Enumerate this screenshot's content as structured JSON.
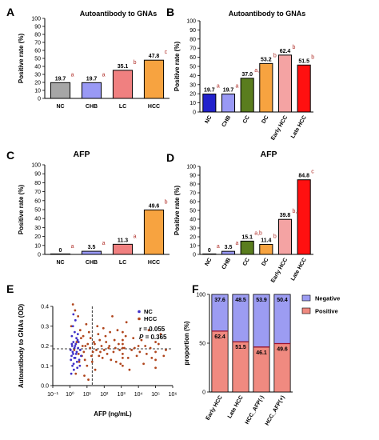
{
  "colors": {
    "NC": "#a6a6a6",
    "CHB": "#9999f5",
    "LC": "#f08080",
    "HCC": "#f7a340",
    "NC_B": "#2222cc",
    "CHB_B": "#9999f5",
    "CC": "#5a7d1e",
    "DC": "#f7a340",
    "EarlyHCC": "#f4a3a3",
    "LateHCC": "#ff1010",
    "negative": "#9c9cf2",
    "positive": "#f08a80",
    "scatter_nc": "#4030c8",
    "scatter_hcc": "#b0451c",
    "sig": "#b0302a"
  },
  "panels": [
    {
      "letter": "A",
      "title": "Autoantibody to GNAs",
      "ylabel": "Positive rate  (%)",
      "ylim": [
        0,
        100
      ],
      "yticks": [
        "0",
        "10",
        "20",
        "30",
        "40",
        "50",
        "60",
        "70",
        "80",
        "90",
        "100"
      ]
    },
    {
      "letter": "B",
      "title": "Autoantibody to GNAs",
      "ylabel": "Positive rate  (%)",
      "ylim": [
        0,
        100
      ],
      "yticks": [
        "0",
        "10",
        "20",
        "30",
        "40",
        "50",
        "60",
        "70",
        "80",
        "90",
        "100"
      ]
    },
    {
      "letter": "C",
      "title": "AFP",
      "ylabel": "Positive rate  (%)",
      "ylim": [
        0,
        100
      ],
      "yticks": [
        "0",
        "10",
        "20",
        "30",
        "40",
        "50",
        "60",
        "70",
        "80",
        "90",
        "100"
      ]
    },
    {
      "letter": "D",
      "title": "AFP",
      "ylabel": "Positive rate  (%)",
      "ylim": [
        0,
        100
      ],
      "yticks": [
        "0",
        "10",
        "20",
        "30",
        "40",
        "50",
        "60",
        "70",
        "80",
        "90",
        "100"
      ]
    },
    {
      "letter": "E",
      "title": "",
      "ylabel": "Autoantibody to GNAs (OD)",
      "xlabel": "AFP (ng/mL)",
      "yticks": [
        "0.0",
        "0.1",
        "0.2",
        "0.3",
        "0.4"
      ],
      "xticks": [
        "10⁻¹",
        "10⁰",
        "10¹",
        "10²",
        "10³",
        "10⁴",
        "10⁵",
        "10⁶"
      ],
      "legend": [
        "NC",
        "HCC"
      ],
      "r": "r = 0.055",
      "p_label": "P",
      "p_value": " = 0.365"
    },
    {
      "letter": "F",
      "title": "",
      "ylabel": "proportion (%)",
      "yticks": [
        "0",
        "50",
        "100"
      ],
      "legend": [
        "Negative",
        "Positive"
      ]
    }
  ],
  "chart_data": [
    {
      "type": "bar",
      "title": "Autoantibody to GNAs",
      "ylabel": "Positive rate  (%)",
      "ylim": [
        0,
        100
      ],
      "categories": [
        "NC",
        "CHB",
        "LC",
        "HCC"
      ],
      "values": [
        19.7,
        19.7,
        35.1,
        47.8
      ],
      "value_labels": [
        "19.7",
        "19.7",
        "35.1",
        "47.8"
      ],
      "significance": [
        "a",
        "a",
        "b",
        "c"
      ]
    },
    {
      "type": "bar",
      "title": "Autoantibody to GNAs",
      "ylabel": "Positive rate  (%)",
      "ylim": [
        0,
        100
      ],
      "categories": [
        "NC",
        "CHB",
        "CC",
        "DC",
        "Early HCC",
        "Late HCC"
      ],
      "values": [
        19.7,
        19.7,
        37.0,
        53.2,
        62.4,
        51.5
      ],
      "value_labels": [
        "19.7",
        "19.7",
        "37.0",
        "53.2",
        "62.4",
        "51.5"
      ],
      "significance": [
        "a",
        "a",
        "a,b",
        "b",
        "b",
        "b"
      ]
    },
    {
      "type": "bar",
      "title": "AFP",
      "ylabel": "Positive rate  (%)",
      "ylim": [
        0,
        100
      ],
      "categories": [
        "NC",
        "CHB",
        "LC",
        "HCC"
      ],
      "values": [
        0,
        3.5,
        11.3,
        49.6
      ],
      "value_labels": [
        "0",
        "3.5",
        "11.3",
        "49.6"
      ],
      "significance": [
        "a",
        "a",
        "a",
        "b"
      ]
    },
    {
      "type": "bar",
      "title": "AFP",
      "ylabel": "Positive rate  (%)",
      "ylim": [
        0,
        100
      ],
      "categories": [
        "NC",
        "CHB",
        "CC",
        "DC",
        "Early HCC",
        "Late HCC"
      ],
      "values": [
        0,
        3.5,
        15.1,
        11.4,
        39.8,
        84.8
      ],
      "value_labels": [
        "0",
        "3.5",
        "15.1",
        "11.4",
        "39.8",
        "84.8"
      ],
      "significance": [
        "a",
        "a",
        "a,b",
        "b",
        "b,c",
        "c"
      ]
    },
    {
      "type": "scatter",
      "xlabel": "AFP (ng/mL)",
      "ylabel": "Autoantibody to GNAs (OD)",
      "xscale": "log",
      "xlim": [
        0.1,
        1000000
      ],
      "ylim": [
        0,
        0.4
      ],
      "reference_lines": {
        "x": 20,
        "y": 0.186
      },
      "correlation": {
        "r": 0.055,
        "P": 0.365
      },
      "series": [
        {
          "name": "NC",
          "points": [
            [
              1.2,
              0.06
            ],
            [
              1.4,
              0.1
            ],
            [
              1.6,
              0.22
            ],
            [
              1.1,
              0.18
            ],
            [
              1.8,
              0.14
            ],
            [
              2.0,
              0.2
            ],
            [
              2.3,
              0.16
            ],
            [
              1.3,
              0.25
            ],
            [
              1.5,
              0.3
            ],
            [
              2.6,
              0.12
            ],
            [
              1.7,
              0.08
            ],
            [
              3.0,
              0.19
            ],
            [
              1.9,
              0.27
            ],
            [
              2.2,
              0.21
            ],
            [
              1.25,
              0.15
            ],
            [
              2.8,
              0.23
            ],
            [
              1.45,
              0.17
            ],
            [
              3.5,
              0.13
            ],
            [
              2.1,
              0.33
            ],
            [
              1.65,
              0.11
            ],
            [
              2.4,
              0.24
            ],
            [
              1.35,
              0.2
            ],
            [
              4.0,
              0.18
            ],
            [
              1.55,
              0.16
            ],
            [
              2.7,
              0.09
            ],
            [
              3.2,
              0.22
            ],
            [
              1.15,
              0.13
            ],
            [
              1.85,
              0.19
            ],
            [
              2.9,
              0.26
            ],
            [
              1.6,
              0.36
            ],
            [
              4.5,
              0.15
            ],
            [
              2.05,
              0.14
            ],
            [
              1.3,
              0.21
            ],
            [
              3.8,
              0.1
            ],
            [
              2.5,
              0.17
            ]
          ]
        },
        {
          "name": "HCC",
          "points": [
            [
              1.5,
              0.41
            ],
            [
              2.0,
              0.38
            ],
            [
              3.0,
              0.35
            ],
            [
              1.2,
              0.3
            ],
            [
              4.0,
              0.28
            ],
            [
              6.0,
              0.25
            ],
            [
              2.5,
              0.22
            ],
            [
              8.0,
              0.2
            ],
            [
              1.8,
              0.18
            ],
            [
              5.0,
              0.15
            ],
            [
              3.5,
              0.12
            ],
            [
              10,
              0.1
            ],
            [
              2.2,
              0.06
            ],
            [
              7.0,
              0.05
            ],
            [
              12,
              0.03
            ],
            [
              15,
              0.19
            ],
            [
              25,
              0.22
            ],
            [
              40,
              0.3
            ],
            [
              60,
              0.17
            ],
            [
              80,
              0.14
            ],
            [
              120,
              0.25
            ],
            [
              200,
              0.2
            ],
            [
              300,
              0.35
            ],
            [
              500,
              0.12
            ],
            [
              800,
              0.18
            ],
            [
              1200,
              0.27
            ],
            [
              1200,
              0.21
            ],
            [
              1200,
              0.16
            ],
            [
              1200,
              0.19
            ],
            [
              1200,
              0.23
            ],
            [
              1200,
              0.14
            ],
            [
              1200,
              0.1
            ],
            [
              2000,
              0.32
            ],
            [
              3000,
              0.08
            ],
            [
              5000,
              0.24
            ],
            [
              8000,
              0.15
            ],
            [
              10000,
              0.2
            ],
            [
              20000,
              0.11
            ],
            [
              40000,
              0.28
            ],
            [
              100000,
              0.17
            ],
            [
              100000,
              0.22
            ],
            [
              100000,
              0.13
            ],
            [
              100000,
              0.09
            ],
            [
              200000,
              0.26
            ],
            [
              400000,
              0.18
            ],
            [
              20,
              0.12
            ],
            [
              30,
              0.08
            ],
            [
              45,
              0.26
            ],
            [
              70,
              0.2
            ],
            [
              150,
              0.16
            ],
            [
              250,
              0.13
            ],
            [
              400,
              0.23
            ],
            [
              600,
              0.28
            ],
            [
              900,
              0.11
            ],
            [
              1500,
              0.19
            ],
            [
              2500,
              0.14
            ],
            [
              4000,
              0.18
            ],
            [
              15000,
              0.23
            ],
            [
              30000,
              0.16
            ],
            [
              60000,
              0.14
            ],
            [
              9.0,
              0.31
            ],
            [
              4.5,
              0.24
            ],
            [
              6.5,
              0.17
            ],
            [
              11,
              0.21
            ],
            [
              13,
              0.27
            ],
            [
              18,
              0.15
            ],
            [
              35,
              0.18
            ],
            [
              55,
              0.23
            ],
            [
              90,
              0.29
            ],
            [
              180,
              0.19
            ],
            [
              350,
              0.17
            ],
            [
              700,
              0.21
            ],
            [
              1800,
              0.25
            ],
            [
              6000,
              0.19
            ],
            [
              12000,
              0.17
            ],
            [
              25000,
              0.2
            ],
            [
              50000,
              0.19
            ],
            [
              150000,
              0.21
            ],
            [
              300000,
              0.15
            ],
            [
              3.2,
              0.16
            ],
            [
              5.5,
              0.2
            ],
            [
              7.5,
              0.13
            ],
            [
              16,
              0.24
            ],
            [
              22,
              0.17
            ],
            [
              28,
              0.21
            ],
            [
              50,
              0.15
            ],
            [
              100,
              0.18
            ],
            [
              130,
              0.22
            ],
            [
              220,
              0.27
            ],
            [
              450,
              0.19
            ]
          ]
        }
      ]
    },
    {
      "type": "bar",
      "stacked": true,
      "ylabel": "proportion (%)",
      "ylim": [
        0,
        100
      ],
      "categories": [
        "Early HCC",
        "Late HCC",
        "HCC_AFP(-)",
        "HCC_AFP(+)"
      ],
      "series": [
        {
          "name": "Positive",
          "values": [
            62.4,
            51.5,
            46.1,
            49.6
          ],
          "labels": [
            "62.4",
            "51.5",
            "46.1",
            "49.6"
          ]
        },
        {
          "name": "Negative",
          "values": [
            37.6,
            48.5,
            53.9,
            50.4
          ],
          "labels": [
            "37.6",
            "48.5",
            "53.9",
            "50.4"
          ]
        }
      ]
    }
  ]
}
